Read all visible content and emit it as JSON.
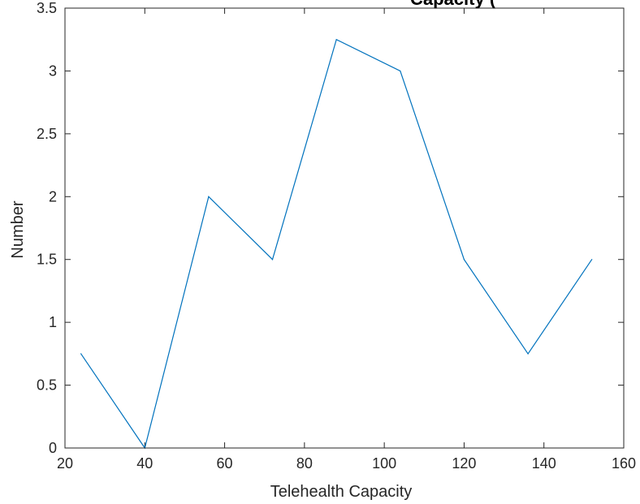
{
  "chart_data": {
    "type": "line",
    "title": "Capacity (",
    "xlabel": "Telehealth Capacity",
    "ylabel": "Number",
    "xlim": [
      20,
      160
    ],
    "ylim": [
      0,
      3.5
    ],
    "xticks": [
      20,
      40,
      60,
      80,
      100,
      120,
      140,
      160
    ],
    "yticks": [
      0,
      0.5,
      1,
      1.5,
      2,
      2.5,
      3,
      3.5
    ],
    "xtick_labels": [
      "20",
      "40",
      "60",
      "80",
      "100",
      "120",
      "140",
      "160"
    ],
    "ytick_labels": [
      "0",
      "0.5",
      "1",
      "1.5",
      "2",
      "2.5",
      "3",
      "3.5"
    ],
    "grid": false,
    "series": [
      {
        "color": "#0072BD",
        "x": [
          24,
          40,
          56,
          72,
          88,
          104,
          120,
          136,
          152
        ],
        "y": [
          0.75,
          0,
          2,
          1.5,
          3.25,
          3,
          1.5,
          0.75,
          1.5
        ]
      }
    ]
  }
}
